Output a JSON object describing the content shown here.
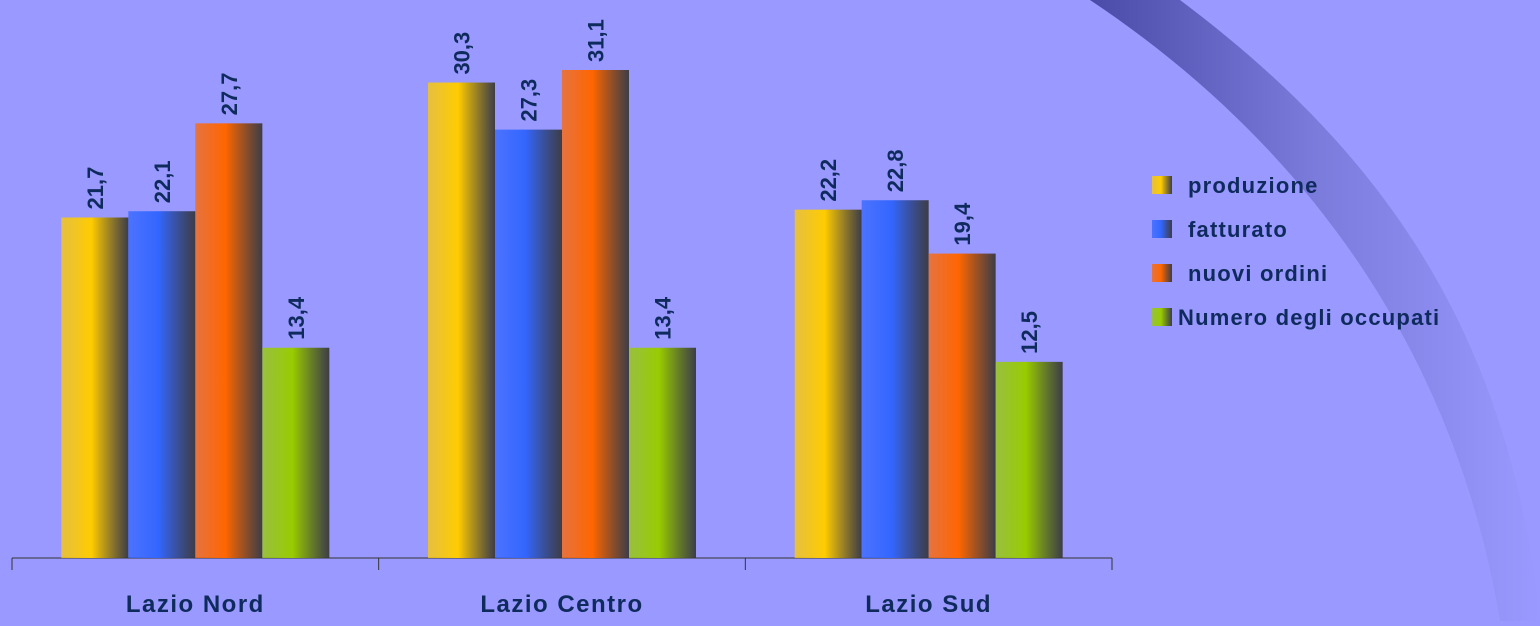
{
  "chart_data": {
    "type": "bar",
    "categories": [
      "Lazio Nord",
      "Lazio Centro",
      "Lazio Sud"
    ],
    "series": [
      {
        "name": "produzione",
        "color": "#ffcc00",
        "values": [
          21.7,
          30.3,
          22.2
        ],
        "value_labels": [
          "21,7",
          "30,3",
          "22,2"
        ]
      },
      {
        "name": "fatturato",
        "color": "#3366ff",
        "values": [
          22.1,
          27.3,
          22.8
        ],
        "value_labels": [
          "22,1",
          "27,3",
          "22,8"
        ]
      },
      {
        "name": "nuovi ordini",
        "color": "#ff6600",
        "values": [
          27.7,
          31.1,
          19.4
        ],
        "value_labels": [
          "27,7",
          "31,1",
          "19,4"
        ]
      },
      {
        "name": "Numero degli occupati",
        "color": "#99cc00",
        "values": [
          13.4,
          13.4,
          12.5
        ],
        "value_labels": [
          "13,4",
          "13,4",
          "12,5"
        ]
      }
    ],
    "legend": "right"
  }
}
